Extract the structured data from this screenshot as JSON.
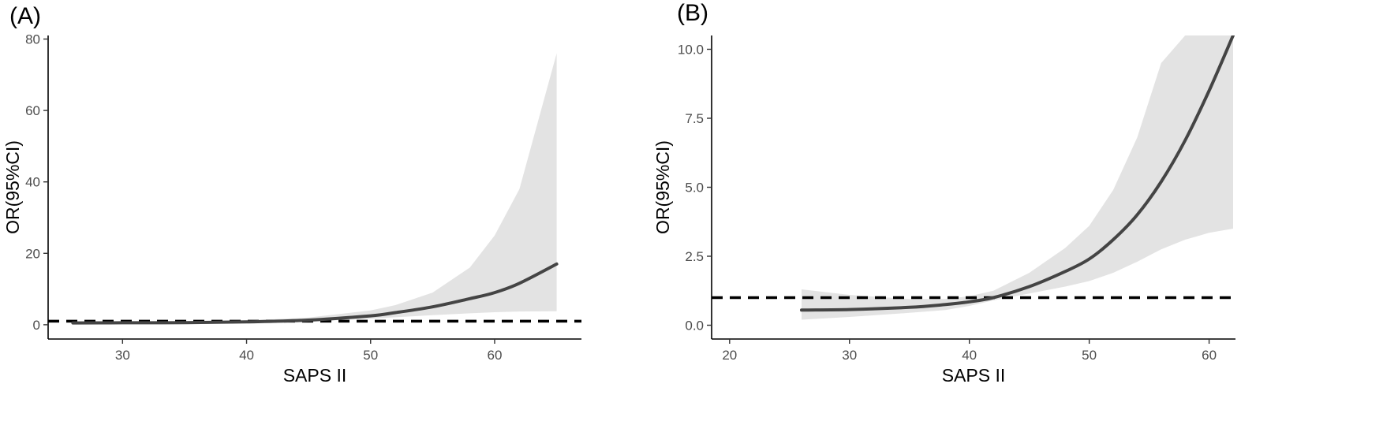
{
  "chart_data": [
    {
      "type": "line",
      "panel_label": "(A)",
      "title": "",
      "xlabel": "SAPS II",
      "ylabel": "OR(95%CI)",
      "xlim": [
        24,
        67
      ],
      "ylim": [
        -4,
        81
      ],
      "xticks": [
        30,
        40,
        50,
        60
      ],
      "yticks": [
        0,
        20,
        40,
        60,
        80
      ],
      "ytick_labels": [
        "0",
        "20",
        "40",
        "60",
        "80"
      ],
      "reference_line": 1,
      "grid": false,
      "colors": {
        "line": "#444444",
        "band": "#e3e3e3",
        "reference": "#000000"
      },
      "series": [
        {
          "x": [
            26,
            30,
            35,
            40,
            45,
            50,
            52,
            55,
            58,
            60,
            62,
            65
          ],
          "y": [
            0.5,
            0.55,
            0.6,
            0.8,
            1.3,
            2.5,
            3.4,
            5.0,
            7.3,
            9.0,
            11.6,
            17.0
          ],
          "lower": [
            0.1,
            0.2,
            0.3,
            0.5,
            0.9,
            1.7,
            2.1,
            2.7,
            3.2,
            3.5,
            3.7,
            3.8
          ],
          "upper": [
            0.9,
            0.9,
            0.9,
            1.2,
            2.0,
            4.0,
            5.5,
            9.0,
            16.0,
            25.0,
            38.0,
            76.0
          ]
        }
      ]
    },
    {
      "type": "line",
      "panel_label": "(B)",
      "title": "",
      "xlabel": "SAPS II",
      "ylabel": "OR(95%CI)",
      "xlim": [
        18.5,
        62.2
      ],
      "ylim": [
        -0.5,
        10.5
      ],
      "xticks": [
        20,
        30,
        40,
        50,
        60
      ],
      "yticks": [
        0,
        2.5,
        5,
        7.5,
        10
      ],
      "ytick_labels": [
        "0.0",
        "2.5",
        "5.0",
        "7.5",
        "10.0"
      ],
      "reference_line": 1,
      "grid": false,
      "colors": {
        "line": "#444444",
        "band": "#e3e3e3",
        "reference": "#000000"
      },
      "series": [
        {
          "x": [
            26,
            30,
            35,
            38,
            40,
            42,
            45,
            48,
            50,
            52,
            54,
            56,
            58,
            60,
            62
          ],
          "y": [
            0.55,
            0.57,
            0.65,
            0.75,
            0.85,
            1.0,
            1.4,
            1.95,
            2.4,
            3.1,
            4.0,
            5.2,
            6.7,
            8.5,
            10.5
          ],
          "lower": [
            0.2,
            0.3,
            0.45,
            0.55,
            0.7,
            0.9,
            1.15,
            1.4,
            1.6,
            1.9,
            2.3,
            2.75,
            3.1,
            3.35,
            3.5
          ],
          "upper": [
            1.3,
            1.1,
            0.95,
            0.95,
            1.05,
            1.25,
            1.9,
            2.8,
            3.6,
            4.9,
            6.8,
            9.5,
            10.5,
            10.5,
            10.5
          ]
        }
      ]
    }
  ]
}
